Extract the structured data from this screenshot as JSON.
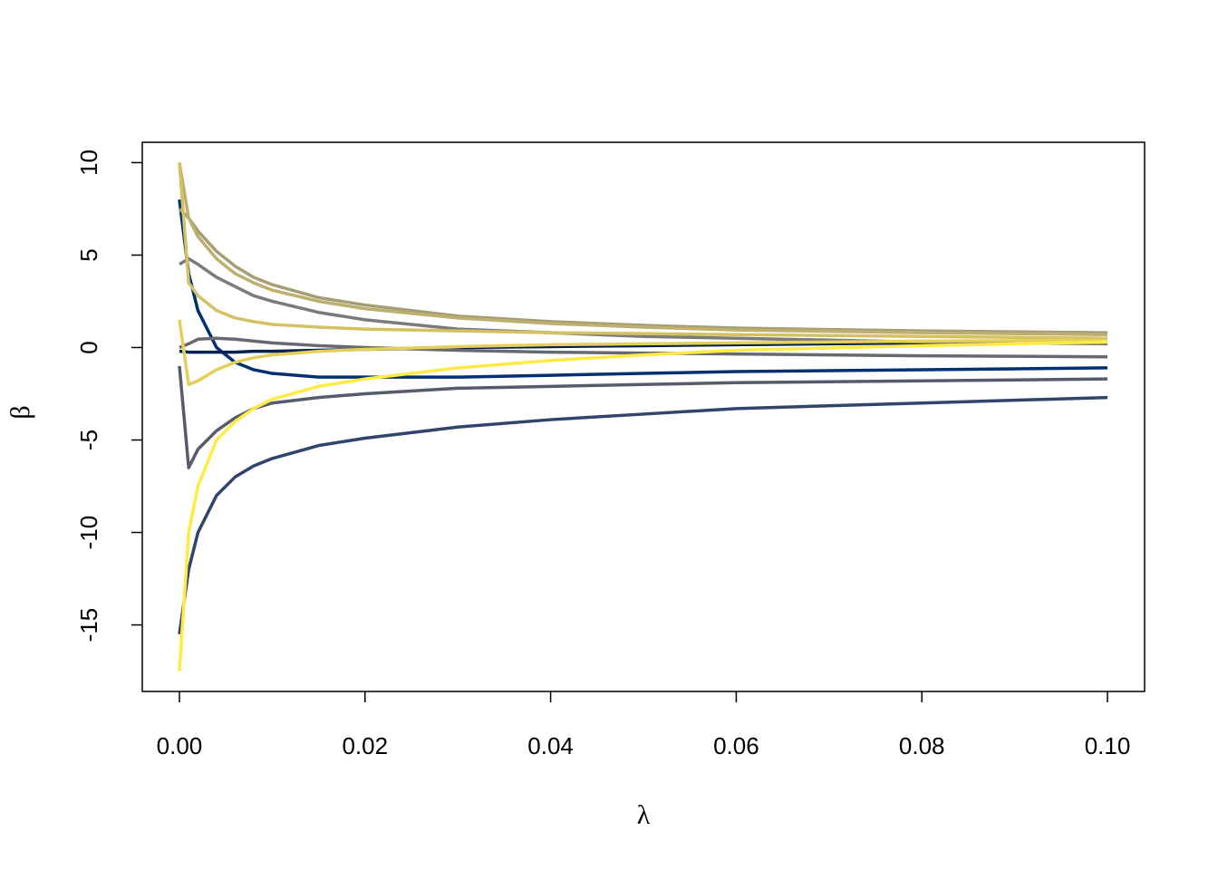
{
  "chart_data": {
    "type": "line",
    "x_label": "λ",
    "y_label": "β",
    "x": [
      0,
      0.001,
      0.002,
      0.004,
      0.006,
      0.008,
      0.01,
      0.015,
      0.02,
      0.03,
      0.04,
      0.05,
      0.06,
      0.08,
      0.1
    ],
    "series": [
      {
        "color": "#00306f",
        "values": [
          8,
          4,
          2,
          0,
          -0.8,
          -1.2,
          -1.4,
          -1.6,
          -1.6,
          -1.6,
          -1.5,
          -1.4,
          -1.3,
          -1.2,
          -1.1
        ]
      },
      {
        "color": "#00204d",
        "values": [
          -0.2,
          -0.25,
          -0.25,
          -0.25,
          -0.25,
          -0.2,
          -0.2,
          -0.15,
          -0.1,
          0,
          0.05,
          0.1,
          0.15,
          0.25,
          0.3
        ]
      },
      {
        "color": "#31446b",
        "values": [
          -15.5,
          -12,
          -10,
          -8,
          -7,
          -6.4,
          -6,
          -5.3,
          -4.9,
          -4.3,
          -3.9,
          -3.6,
          -3.3,
          -3,
          -2.7
        ]
      },
      {
        "color": "#575c6d",
        "values": [
          -1,
          -6.5,
          -5.5,
          -4.5,
          -3.8,
          -3.3,
          -3,
          -2.7,
          -2.5,
          -2.2,
          -2.1,
          -2,
          -1.9,
          -1.8,
          -1.7
        ]
      },
      {
        "color": "#666970",
        "values": [
          0,
          0.2,
          0.45,
          0.5,
          0.45,
          0.35,
          0.25,
          0.1,
          0,
          -0.15,
          -0.25,
          -0.3,
          -0.35,
          -0.45,
          -0.5
        ]
      },
      {
        "color": "#7c7b78",
        "values": [
          4.5,
          4.8,
          4.5,
          3.8,
          3.3,
          2.8,
          2.5,
          1.9,
          1.5,
          1,
          0.8,
          0.6,
          0.5,
          0.3,
          0.2
        ]
      },
      {
        "color": "#a69d75",
        "values": [
          7.5,
          7,
          6.3,
          5.2,
          4.4,
          3.8,
          3.4,
          2.7,
          2.3,
          1.7,
          1.4,
          1.2,
          1.05,
          0.9,
          0.8
        ]
      },
      {
        "color": "#bcaf6f",
        "values": [
          10,
          7,
          6,
          4.8,
          4,
          3.5,
          3.1,
          2.5,
          2.1,
          1.6,
          1.3,
          1.1,
          0.95,
          0.8,
          0.7
        ]
      },
      {
        "color": "#d3c164",
        "values": [
          10,
          3.5,
          2.8,
          2,
          1.6,
          1.4,
          1.25,
          1.1,
          1,
          0.9,
          0.8,
          0.75,
          0.7,
          0.6,
          0.5
        ]
      },
      {
        "color": "#e4cf5b",
        "values": [
          1.5,
          -2,
          -1.8,
          -1.2,
          -0.8,
          -0.55,
          -0.4,
          -0.2,
          -0.1,
          0.05,
          0.15,
          0.2,
          0.25,
          0.35,
          0.4
        ]
      },
      {
        "color": "#ffea46",
        "values": [
          -17.5,
          -10,
          -7.5,
          -5,
          -4,
          -3.3,
          -2.8,
          -2.1,
          -1.7,
          -1.1,
          -0.7,
          -0.4,
          -0.15,
          0.1,
          0.3
        ]
      }
    ],
    "xlim": [
      -0.004,
      0.104
    ],
    "ylim": [
      -18.6,
      11.1
    ],
    "xticks": [
      {
        "value": 0,
        "label": "0.00"
      },
      {
        "value": 0.02,
        "label": "0.02"
      },
      {
        "value": 0.04,
        "label": "0.04"
      },
      {
        "value": 0.06,
        "label": "0.06"
      },
      {
        "value": 0.08,
        "label": "0.08"
      },
      {
        "value": 0.1,
        "label": "0.10"
      }
    ],
    "yticks": [
      -15,
      -10,
      -5,
      0,
      5,
      10
    ]
  }
}
